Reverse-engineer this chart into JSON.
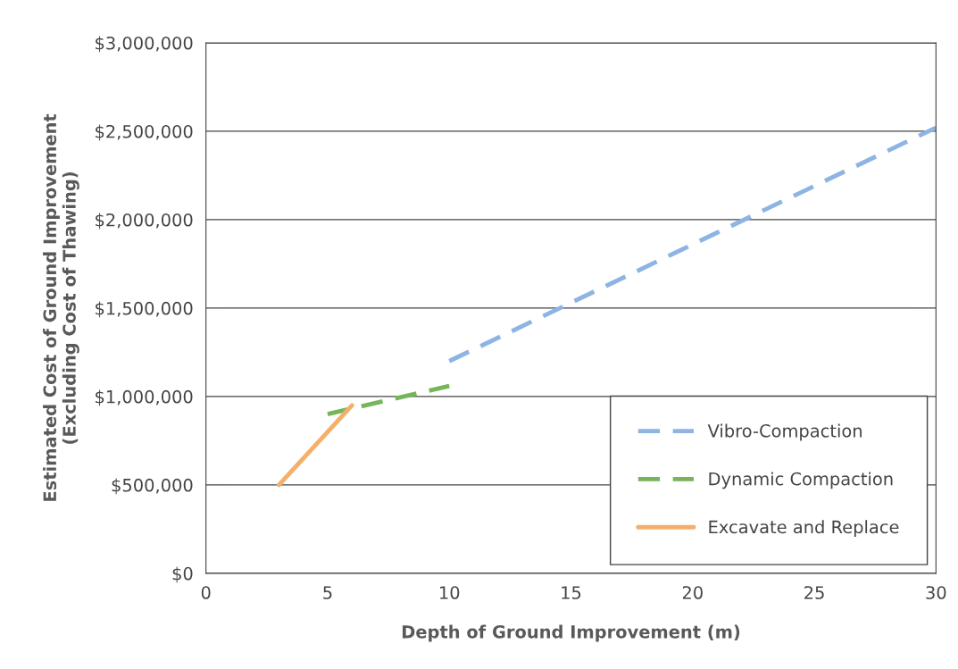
{
  "chart_data": {
    "type": "line",
    "xlabel": "Depth of Ground Improvement (m)",
    "ylabel": "Estimated Cost of Ground Improvement\n(Excluding Cost of Thawing)",
    "xlim": [
      0,
      30
    ],
    "xticks": [
      0,
      5,
      10,
      15,
      20,
      25,
      30
    ],
    "ylim": [
      0,
      3000000
    ],
    "yticks": [
      {
        "value": 0,
        "label": "$0"
      },
      {
        "value": 500000,
        "label": "$500,000"
      },
      {
        "value": 1000000,
        "label": "$1,000,000"
      },
      {
        "value": 1500000,
        "label": "$1,500,000"
      },
      {
        "value": 2000000,
        "label": "$2,000,000"
      },
      {
        "value": 2500000,
        "label": "$2,500,000"
      },
      {
        "value": 3000000,
        "label": "$3,000,000"
      }
    ],
    "grid": "y",
    "legend": "bottom right",
    "series": [
      {
        "name": "Vibro-Compaction",
        "color": "#8db4e2",
        "line_style": "dashed",
        "x": [
          10,
          30
        ],
        "values": [
          1200000,
          2520000
        ]
      },
      {
        "name": "Dynamic Compaction",
        "color": "#77b55a",
        "line_style": "dashed",
        "x": [
          5,
          10
        ],
        "values": [
          900000,
          1060000
        ]
      },
      {
        "name": "Excavate and Replace",
        "color": "#f4b06a",
        "line_style": "solid",
        "x": [
          3,
          6
        ],
        "values": [
          500000,
          950000
        ]
      }
    ]
  }
}
